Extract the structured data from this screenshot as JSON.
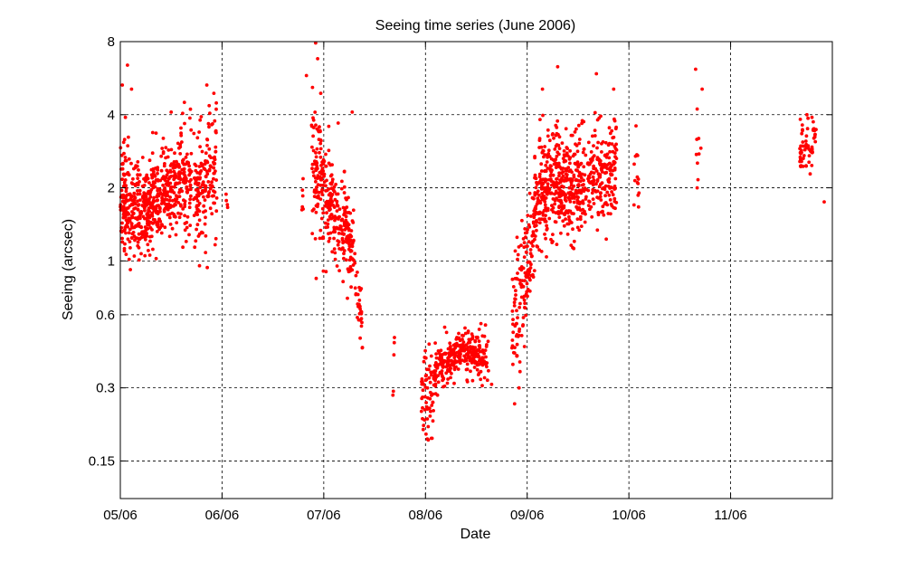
{
  "chart_data": {
    "type": "scatter",
    "title": "Seeing time series (June 2006)",
    "xlabel": "Date",
    "ylabel": "Seeing (arcsec)",
    "x_axis": {
      "unit": "day of June 2006",
      "range": [
        5.0,
        12.0
      ],
      "ticks": [
        5,
        6,
        7,
        8,
        9,
        10,
        11
      ],
      "tick_labels": [
        "05/06",
        "06/06",
        "07/06",
        "08/06",
        "09/06",
        "10/06",
        "11/06"
      ]
    },
    "y_axis": {
      "scale": "log2",
      "range": [
        0.105,
        8.0
      ],
      "ticks": [
        0.15,
        0.3,
        0.6,
        1,
        2,
        4,
        8
      ],
      "tick_labels": [
        "0.15",
        "0.3",
        "0.6",
        "1",
        "2",
        "4",
        "8"
      ]
    },
    "grid": true,
    "marker_color": "#ff0000",
    "series": [
      {
        "segments": [
          {
            "x_start": 5.0,
            "x_end": 5.1,
            "y_start": 1.9,
            "y_end": 1.7,
            "spread_log2": 0.38,
            "n": 110
          },
          {
            "x_start": 5.1,
            "x_end": 5.3,
            "y_start": 1.7,
            "y_end": 1.6,
            "spread_log2": 0.33,
            "n": 190
          },
          {
            "x_start": 5.3,
            "x_end": 5.55,
            "y_start": 1.7,
            "y_end": 2.1,
            "spread_log2": 0.32,
            "n": 210
          },
          {
            "x_start": 5.55,
            "x_end": 5.7,
            "y_start": 2.1,
            "y_end": 2.4,
            "spread_log2": 0.35,
            "n": 110
          },
          {
            "x_start": 5.72,
            "x_end": 5.95,
            "y_start": 1.9,
            "y_end": 2.6,
            "spread_log2": 0.38,
            "n": 160
          },
          {
            "x_start": 6.04,
            "x_end": 6.08,
            "y_start": 1.8,
            "y_end": 1.8,
            "spread_log2": 0.08,
            "n": 4
          },
          {
            "x_start": 6.78,
            "x_end": 6.8,
            "y_start": 1.9,
            "y_end": 1.9,
            "spread_log2": 0.15,
            "n": 6
          },
          {
            "x_start": 6.88,
            "x_end": 7.05,
            "y_start": 2.6,
            "y_end": 1.7,
            "spread_log2": 0.45,
            "n": 130
          },
          {
            "x_start": 7.05,
            "x_end": 7.2,
            "y_start": 1.7,
            "y_end": 1.5,
            "spread_log2": 0.35,
            "n": 100
          },
          {
            "x_start": 7.2,
            "x_end": 7.3,
            "y_start": 1.6,
            "y_end": 0.95,
            "spread_log2": 0.3,
            "n": 80
          },
          {
            "x_start": 7.3,
            "x_end": 7.38,
            "y_start": 0.9,
            "y_end": 0.5,
            "spread_log2": 0.25,
            "n": 30
          },
          {
            "x_start": 7.68,
            "x_end": 7.7,
            "y_start": 0.35,
            "y_end": 0.35,
            "spread_log2": 0.35,
            "n": 3
          },
          {
            "x_start": 7.96,
            "x_end": 8.08,
            "y_start": 0.3,
            "y_end": 0.28,
            "spread_log2": 0.3,
            "n": 60
          },
          {
            "x_start": 8.08,
            "x_end": 8.35,
            "y_start": 0.35,
            "y_end": 0.42,
            "spread_log2": 0.15,
            "n": 170
          },
          {
            "x_start": 8.35,
            "x_end": 8.62,
            "y_start": 0.42,
            "y_end": 0.4,
            "spread_log2": 0.15,
            "n": 150
          },
          {
            "x_start": 8.85,
            "x_end": 8.95,
            "y_start": 0.45,
            "y_end": 0.8,
            "spread_log2": 0.45,
            "n": 60
          },
          {
            "x_start": 8.95,
            "x_end": 9.07,
            "y_start": 0.75,
            "y_end": 1.4,
            "spread_log2": 0.35,
            "n": 80
          },
          {
            "x_start": 9.07,
            "x_end": 9.3,
            "y_start": 1.8,
            "y_end": 2.1,
            "spread_log2": 0.38,
            "n": 210
          },
          {
            "x_start": 9.3,
            "x_end": 9.55,
            "y_start": 2.1,
            "y_end": 2.0,
            "spread_log2": 0.35,
            "n": 220
          },
          {
            "x_start": 9.55,
            "x_end": 9.88,
            "y_start": 2.1,
            "y_end": 2.5,
            "spread_log2": 0.35,
            "n": 210
          },
          {
            "x_start": 10.05,
            "x_end": 10.1,
            "y_start": 2.3,
            "y_end": 2.1,
            "spread_log2": 0.25,
            "n": 12
          },
          {
            "x_start": 10.65,
            "x_end": 10.72,
            "y_start": 2.8,
            "y_end": 3.3,
            "spread_log2": 0.45,
            "n": 10
          },
          {
            "x_start": 11.68,
            "x_end": 11.84,
            "y_start": 2.8,
            "y_end": 3.2,
            "spread_log2": 0.15,
            "n": 60
          }
        ],
        "outliers": [
          [
            5.02,
            5.3
          ],
          [
            5.05,
            3.9
          ],
          [
            5.07,
            6.4
          ],
          [
            5.11,
            5.1
          ],
          [
            5.04,
            1.1
          ],
          [
            5.85,
            5.3
          ],
          [
            5.92,
            4.9
          ],
          [
            5.63,
            4.5
          ],
          [
            5.5,
            4.1
          ],
          [
            6.83,
            5.8
          ],
          [
            6.92,
            7.9
          ],
          [
            6.94,
            6.8
          ],
          [
            6.97,
            4.9
          ],
          [
            7.28,
            4.1
          ],
          [
            7.38,
            0.44
          ],
          [
            7.68,
            0.28
          ],
          [
            7.69,
            0.41
          ],
          [
            8.65,
            0.31
          ],
          [
            8.05,
            0.24
          ],
          [
            8.9,
            1.25
          ],
          [
            8.92,
            0.3
          ],
          [
            8.93,
            0.35
          ],
          [
            9.15,
            5.1
          ],
          [
            9.3,
            6.3
          ],
          [
            9.68,
            5.9
          ],
          [
            9.85,
            5.1
          ],
          [
            10.72,
            5.1
          ],
          [
            10.07,
            3.6
          ],
          [
            10.05,
            1.7
          ],
          [
            11.92,
            1.75
          ],
          [
            11.8,
            3.9
          ],
          [
            11.75,
            4.0
          ]
        ]
      }
    ]
  }
}
